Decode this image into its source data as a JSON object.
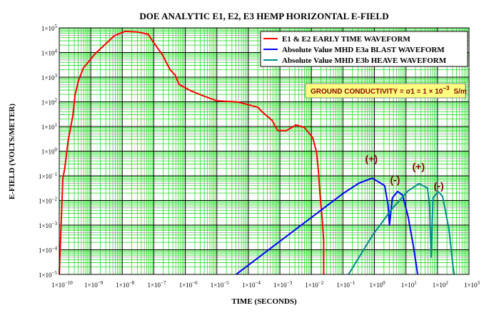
{
  "chart_data": {
    "type": "line",
    "title": "DOE ANALYTIC E1, E2, E3 HEMP HORIZONTAL E-FIELD",
    "xlabel": "TIME (SECONDS)",
    "ylabel": "E-FIELD (VOLTS/METER)",
    "xscale": "log",
    "yscale": "log",
    "xlim": [
      1e-10,
      1000.0
    ],
    "ylim": [
      1e-05,
      100000.0
    ],
    "grid": true,
    "tick_base": "1×10",
    "xtick_exponents": [
      "−10",
      "−9",
      "−8",
      "−7",
      "−6",
      "−5",
      "−4",
      "−3",
      "−2",
      "−1",
      "0",
      "1",
      "2",
      "3"
    ],
    "ytick_exponents": [
      "5",
      "4",
      "3",
      "2",
      "1",
      "0",
      "−1",
      "−2",
      "−3",
      "−4",
      "−5"
    ],
    "legend_placement": "top-right",
    "legend": [
      {
        "name": "E1 & E2 EARLY TIME WAVEFORM",
        "color": "#ff0000"
      },
      {
        "name": "Absolute Value MHD E3a BLAST WAVEFORM",
        "color": "#0000ff"
      },
      {
        "name": "Absolute Value MHD E3b HEAVE WAVEFORM",
        "color": "#008b8b"
      }
    ],
    "conductivity_note": {
      "prefix": "GROUND CONDUCTIVITY = σ1 = 1 × 10",
      "exp": "−3",
      "unit": "S/m",
      "bg": "#ffff80"
    },
    "annotations": [
      {
        "text": "(+)",
        "x": 0.8,
        "y": 0.35
      },
      {
        "text": "(-)",
        "x": 4.5,
        "y": 0.05
      },
      {
        "text": "(+)",
        "x": 25,
        "y": 0.17
      },
      {
        "text": "(-)",
        "x": 110,
        "y": 0.028
      }
    ],
    "series": [
      {
        "name": "E1 & E2 EARLY TIME WAVEFORM",
        "color": "#ff0000",
        "points": [
          [
            1e-10,
            1e-05
          ],
          [
            1.3e-10,
            0.076
          ],
          [
            1.5e-10,
            0.21
          ],
          [
            1.9e-10,
            2.5
          ],
          [
            2.7e-10,
            27
          ],
          [
            3.2e-10,
            200
          ],
          [
            4.1e-10,
            760
          ],
          [
            5.9e-10,
            2400
          ],
          [
            1.4e-09,
            9100
          ],
          [
            5.6e-09,
            48000
          ],
          [
            1.2e-08,
            72000
          ],
          [
            3.2e-08,
            68000
          ],
          [
            6.6e-08,
            55000
          ],
          [
            1.1e-07,
            21000
          ],
          [
            1.9e-07,
            7900
          ],
          [
            3.2e-07,
            2100
          ],
          [
            4.8e-07,
            1200
          ],
          [
            6.3e-07,
            510
          ],
          [
            1.5e-06,
            280
          ],
          [
            3.5e-06,
            180
          ],
          [
            1e-05,
            110
          ],
          [
            4.8e-05,
            98
          ],
          [
            0.0002,
            60
          ],
          [
            0.00028,
            38
          ],
          [
            0.00056,
            18
          ],
          [
            0.00085,
            6.8
          ],
          [
            0.0016,
            6.8
          ],
          [
            0.0032,
            11.5
          ],
          [
            0.0059,
            9.3
          ],
          [
            0.011,
            3.5
          ],
          [
            0.0145,
            0.91
          ],
          [
            0.017,
            0.12
          ],
          [
            0.0186,
            0.02
          ],
          [
            0.022,
            0.0017
          ],
          [
            0.0245,
            0.00023
          ],
          [
            0.0245,
            1e-05
          ]
        ]
      },
      {
        "name": "Absolute Value MHD E3a BLAST WAVEFORM",
        "color": "#0000ff",
        "points": [
          [
            4.1e-05,
            1e-05
          ],
          [
            0.1,
            0.019
          ],
          [
            0.32,
            0.05
          ],
          [
            0.85,
            0.081
          ],
          [
            2.1,
            0.04
          ],
          [
            2.7,
            0.0065
          ],
          [
            3.0,
            0.001
          ],
          [
            3.7,
            0.0126
          ],
          [
            5.4,
            0.023
          ],
          [
            7.8,
            0.0166
          ],
          [
            11.7,
            0.0022
          ],
          [
            17,
            0.00015
          ],
          [
            22,
            1.8e-05
          ],
          [
            23.4,
            1e-05
          ]
        ]
      },
      {
        "name": "Absolute Value MHD E3b HEAVE WAVEFORM",
        "color": "#008b8b",
        "points": [
          [
            0.15,
            1e-05
          ],
          [
            0.85,
            0.00037
          ],
          [
            3.5,
            0.0044
          ],
          [
            11.7,
            0.0245
          ],
          [
            26,
            0.048
          ],
          [
            48,
            0.032
          ],
          [
            56,
            0.0065
          ],
          [
            63,
            5e-05
          ],
          [
            72,
            0.0126
          ],
          [
            105,
            0.023
          ],
          [
            145,
            0.0145
          ],
          [
            230,
            0.00072
          ],
          [
            316,
            1.8e-05
          ],
          [
            340,
            1e-05
          ]
        ]
      }
    ]
  }
}
